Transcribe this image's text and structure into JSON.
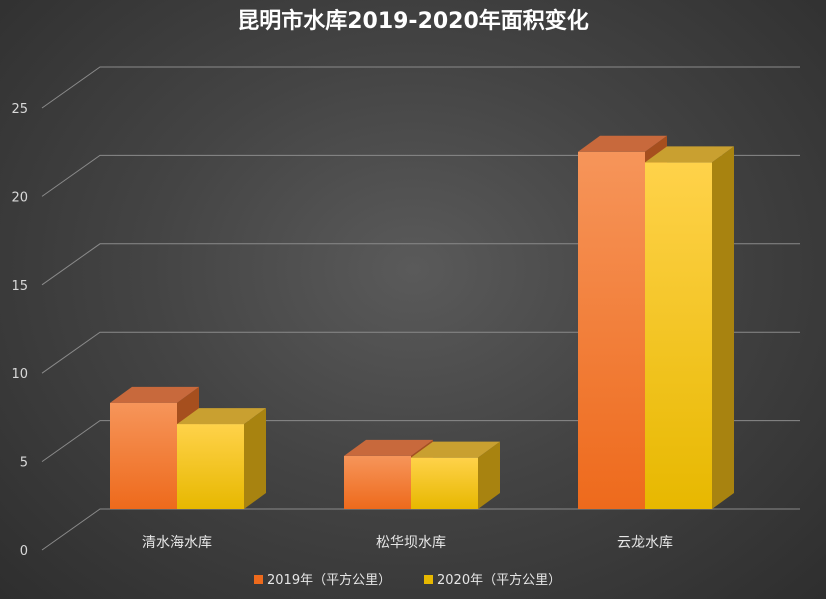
{
  "chart_data": {
    "type": "bar",
    "title": "昆明市水库2019-2020年面积变化",
    "categories": [
      "清水海水库",
      "松华坝水库",
      "云龙水库"
    ],
    "series": [
      {
        "name": "2019年（平方公里）",
        "values": [
          7.7,
          4.7,
          21.9
        ]
      },
      {
        "name": "2020年（平方公里）",
        "values": [
          6.5,
          4.6,
          21.3
        ]
      }
    ],
    "ylim": [
      0,
      25
    ],
    "yticks": [
      0,
      5,
      10,
      15,
      20,
      25
    ],
    "grid": true,
    "legend": "bottom",
    "colors": {
      "s2019": {
        "front_top": "#f6955a",
        "front_bottom": "#ee6a1c",
        "top": "#c8693c",
        "side": "#a64f1e"
      },
      "s2020": {
        "front_top": "#ffd24a",
        "front_bottom": "#e7b800",
        "top": "#c9a030",
        "side": "#a88310"
      }
    }
  }
}
